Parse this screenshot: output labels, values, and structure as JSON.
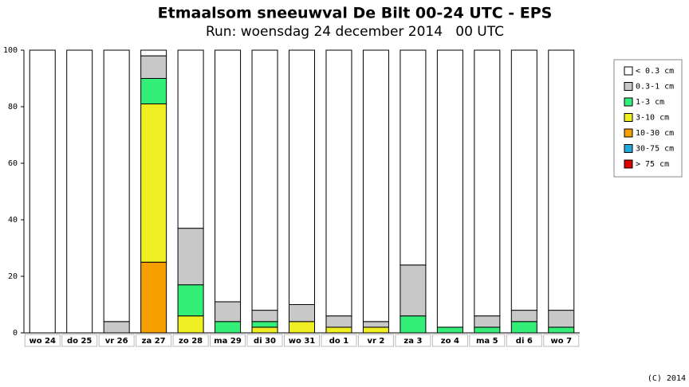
{
  "chart_data": {
    "type": "stacked_bar",
    "title": "Etmaalsom sneeuwval De Bilt 00-24 UTC - EPS",
    "subtitle": "Run: woensdag 24 december 2014   00 UTC",
    "footer": "(C) 2014",
    "categories": [
      "wo 24",
      "do 25",
      "vr 26",
      "za 27",
      "zo 28",
      "ma 29",
      "di 30",
      "wo 31",
      "do 1",
      "vr 2",
      "za 3",
      "zo 4",
      "ma 5",
      "di 6",
      "wo 7"
    ],
    "series": [
      {
        "name": "< 0.3 cm",
        "color": "#ffffff",
        "values": [
          100,
          100,
          96,
          2,
          63,
          89,
          92,
          90,
          94,
          96,
          76,
          98,
          94,
          92,
          92
        ]
      },
      {
        "name": "0.3-1 cm",
        "color": "#c8c8c8",
        "values": [
          0,
          0,
          4,
          8,
          20,
          7,
          4,
          6,
          4,
          2,
          18,
          0,
          4,
          4,
          6
        ]
      },
      {
        "name": "1-3 cm",
        "color": "#33ee77",
        "values": [
          0,
          0,
          0,
          9,
          11,
          4,
          2,
          0,
          0,
          0,
          6,
          2,
          2,
          4,
          2
        ]
      },
      {
        "name": "3-10 cm",
        "color": "#eeee22",
        "values": [
          0,
          0,
          0,
          56,
          6,
          0,
          2,
          4,
          2,
          2,
          0,
          0,
          0,
          0,
          0
        ]
      },
      {
        "name": "10-30 cm",
        "color": "#f5a000",
        "values": [
          0,
          0,
          0,
          25,
          0,
          0,
          0,
          0,
          0,
          0,
          0,
          0,
          0,
          0,
          0
        ]
      },
      {
        "name": "30-75 cm",
        "color": "#22aadd",
        "values": [
          0,
          0,
          0,
          0,
          0,
          0,
          0,
          0,
          0,
          0,
          0,
          0,
          0,
          0,
          0
        ]
      },
      {
        "name": "> 75 cm",
        "color": "#dd0000",
        "values": [
          0,
          0,
          0,
          0,
          0,
          0,
          0,
          0,
          0,
          0,
          0,
          0,
          0,
          0,
          0
        ]
      }
    ],
    "ylim": [
      0,
      100
    ],
    "yticks": [
      0,
      20,
      40,
      60,
      80,
      100
    ],
    "grid": false,
    "legend": "right"
  }
}
